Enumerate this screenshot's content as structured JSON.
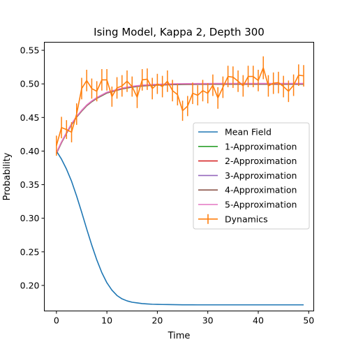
{
  "chart_data": {
    "type": "line",
    "title": "Ising Model, Kappa 2, Depth 300",
    "xlabel": "Time",
    "ylabel": "Probability",
    "xlim": [
      -2.4,
      51
    ],
    "ylim": [
      0.162,
      0.562
    ],
    "xticks": [
      "0",
      "10",
      "20",
      "30",
      "40",
      "50"
    ],
    "yticks": [
      "0.20",
      "0.25",
      "0.30",
      "0.35",
      "0.40",
      "0.45",
      "0.50",
      "0.55"
    ],
    "grid": false,
    "legend_position": "center-right",
    "mean_field": {
      "name": "Mean Field",
      "color": "#1f77b4",
      "x": [
        0,
        1,
        2,
        3,
        4,
        5,
        6,
        7,
        8,
        9,
        10,
        11,
        12,
        13,
        14,
        15,
        16,
        17,
        18,
        19,
        20,
        21,
        22,
        23,
        24,
        25,
        26,
        27,
        28,
        29,
        30,
        31,
        32,
        33,
        34,
        35,
        36,
        37,
        38,
        39,
        40,
        41,
        42,
        43,
        44,
        45,
        46,
        47,
        48,
        49
      ],
      "y": [
        0.4,
        0.388,
        0.373,
        0.355,
        0.333,
        0.309,
        0.284,
        0.26,
        0.238,
        0.219,
        0.204,
        0.193,
        0.185,
        0.18,
        0.177,
        0.175,
        0.174,
        0.173,
        0.1725,
        0.172,
        0.1718,
        0.1716,
        0.1715,
        0.1714,
        0.1713,
        0.1712,
        0.1712,
        0.1712,
        0.1711,
        0.1711,
        0.1711,
        0.1711,
        0.1711,
        0.1711,
        0.1711,
        0.1711,
        0.1711,
        0.1711,
        0.1711,
        0.1711,
        0.1711,
        0.1711,
        0.1711,
        0.1711,
        0.1711,
        0.1711,
        0.1711,
        0.1711,
        0.1711,
        0.1711
      ]
    },
    "approximations": [
      {
        "name": "1-Approximation",
        "color": "#2ca02c"
      },
      {
        "name": "2-Approximation",
        "color": "#d62728"
      },
      {
        "name": "3-Approximation",
        "color": "#9467bd"
      },
      {
        "name": "4-Approximation",
        "color": "#8c564b"
      },
      {
        "name": "5-Approximation",
        "color": "#e377c2"
      }
    ],
    "approximation_values": {
      "x": [
        0,
        1,
        2,
        3,
        4,
        5,
        6,
        7,
        8,
        9,
        10,
        11,
        12,
        13,
        14,
        15,
        16,
        17,
        18,
        19,
        20,
        21,
        22,
        23,
        24,
        25,
        26,
        27,
        28,
        29,
        30,
        31,
        32,
        33,
        34,
        35,
        36,
        37,
        38,
        39,
        40,
        41,
        42,
        43,
        44,
        45,
        46,
        47,
        48,
        49
      ],
      "y": [
        0.397,
        0.413,
        0.427,
        0.44,
        0.451,
        0.46,
        0.468,
        0.474,
        0.479,
        0.483,
        0.487,
        0.489,
        0.491,
        0.493,
        0.4945,
        0.4958,
        0.4967,
        0.4975,
        0.498,
        0.4985,
        0.4988,
        0.499,
        0.4993,
        0.4995,
        0.4996,
        0.4997,
        0.4998,
        0.4998,
        0.4999,
        0.4999,
        0.4999,
        0.5,
        0.5,
        0.5,
        0.5,
        0.5,
        0.5,
        0.5,
        0.5,
        0.5,
        0.5,
        0.5,
        0.5,
        0.5,
        0.5,
        0.5,
        0.5,
        0.5,
        0.5,
        0.5
      ]
    },
    "dynamics": {
      "name": "Dynamics",
      "color": "#ff7f0e",
      "x": [
        0,
        1,
        2,
        3,
        4,
        5,
        6,
        7,
        8,
        9,
        10,
        11,
        12,
        13,
        14,
        15,
        16,
        17,
        18,
        19,
        20,
        21,
        22,
        23,
        24,
        25,
        26,
        27,
        28,
        29,
        30,
        31,
        32,
        33,
        34,
        35,
        36,
        37,
        38,
        39,
        40,
        41,
        42,
        43,
        44,
        45,
        46,
        47,
        48,
        49
      ],
      "y": [
        0.408,
        0.435,
        0.432,
        0.428,
        0.455,
        0.493,
        0.505,
        0.493,
        0.489,
        0.506,
        0.506,
        0.481,
        0.494,
        0.497,
        0.504,
        0.496,
        0.48,
        0.506,
        0.507,
        0.493,
        0.5,
        0.496,
        0.504,
        0.49,
        0.484,
        0.46,
        0.467,
        0.486,
        0.483,
        0.49,
        0.486,
        0.498,
        0.479,
        0.495,
        0.511,
        0.51,
        0.504,
        0.497,
        0.511,
        0.511,
        0.505,
        0.524,
        0.497,
        0.501,
        0.502,
        0.496,
        0.489,
        0.498,
        0.513,
        0.512
      ],
      "err": [
        0.015,
        0.016,
        0.014,
        0.015,
        0.016,
        0.016,
        0.016,
        0.015,
        0.015,
        0.016,
        0.016,
        0.015,
        0.016,
        0.016,
        0.016,
        0.015,
        0.016,
        0.016,
        0.016,
        0.016,
        0.015,
        0.016,
        0.016,
        0.016,
        0.016,
        0.015,
        0.015,
        0.016,
        0.015,
        0.016,
        0.015,
        0.016,
        0.016,
        0.016,
        0.016,
        0.016,
        0.016,
        0.016,
        0.016,
        0.016,
        0.016,
        0.017,
        0.016,
        0.016,
        0.016,
        0.016,
        0.016,
        0.016,
        0.016,
        0.016
      ]
    }
  }
}
